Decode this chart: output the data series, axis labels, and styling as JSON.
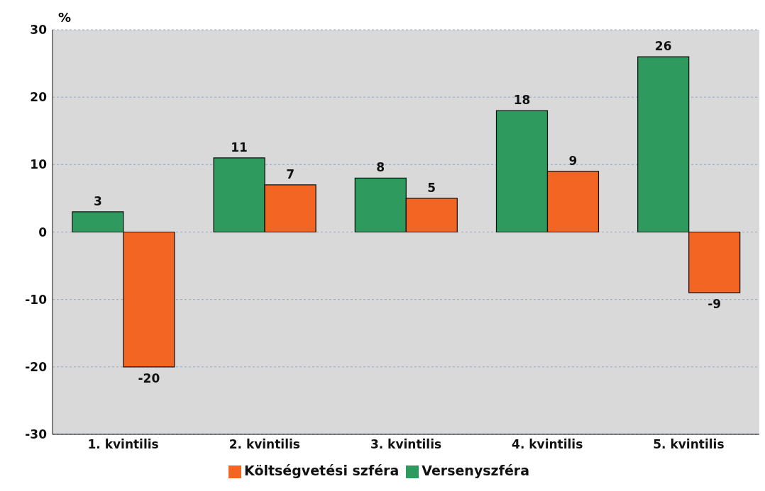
{
  "chart_data": {
    "type": "bar",
    "ylabel": "%",
    "categories": [
      "1. kvintilis",
      "2. kvintilis",
      "3. kvintilis",
      "4. kvintilis",
      "5. kvintilis"
    ],
    "series": [
      {
        "name": "Versenyszféra",
        "color": "#2e9a5e",
        "values": [
          3,
          11,
          8,
          18,
          26
        ]
      },
      {
        "name": "Költségvetési szféra",
        "color": "#f26522",
        "values": [
          -20,
          7,
          5,
          9,
          -9
        ]
      }
    ],
    "ylim": [
      -30,
      30
    ],
    "yticks": [
      -30,
      -20,
      -10,
      0,
      10,
      20,
      30
    ],
    "grid": "y",
    "legend": "bottom",
    "data_labels": true
  }
}
